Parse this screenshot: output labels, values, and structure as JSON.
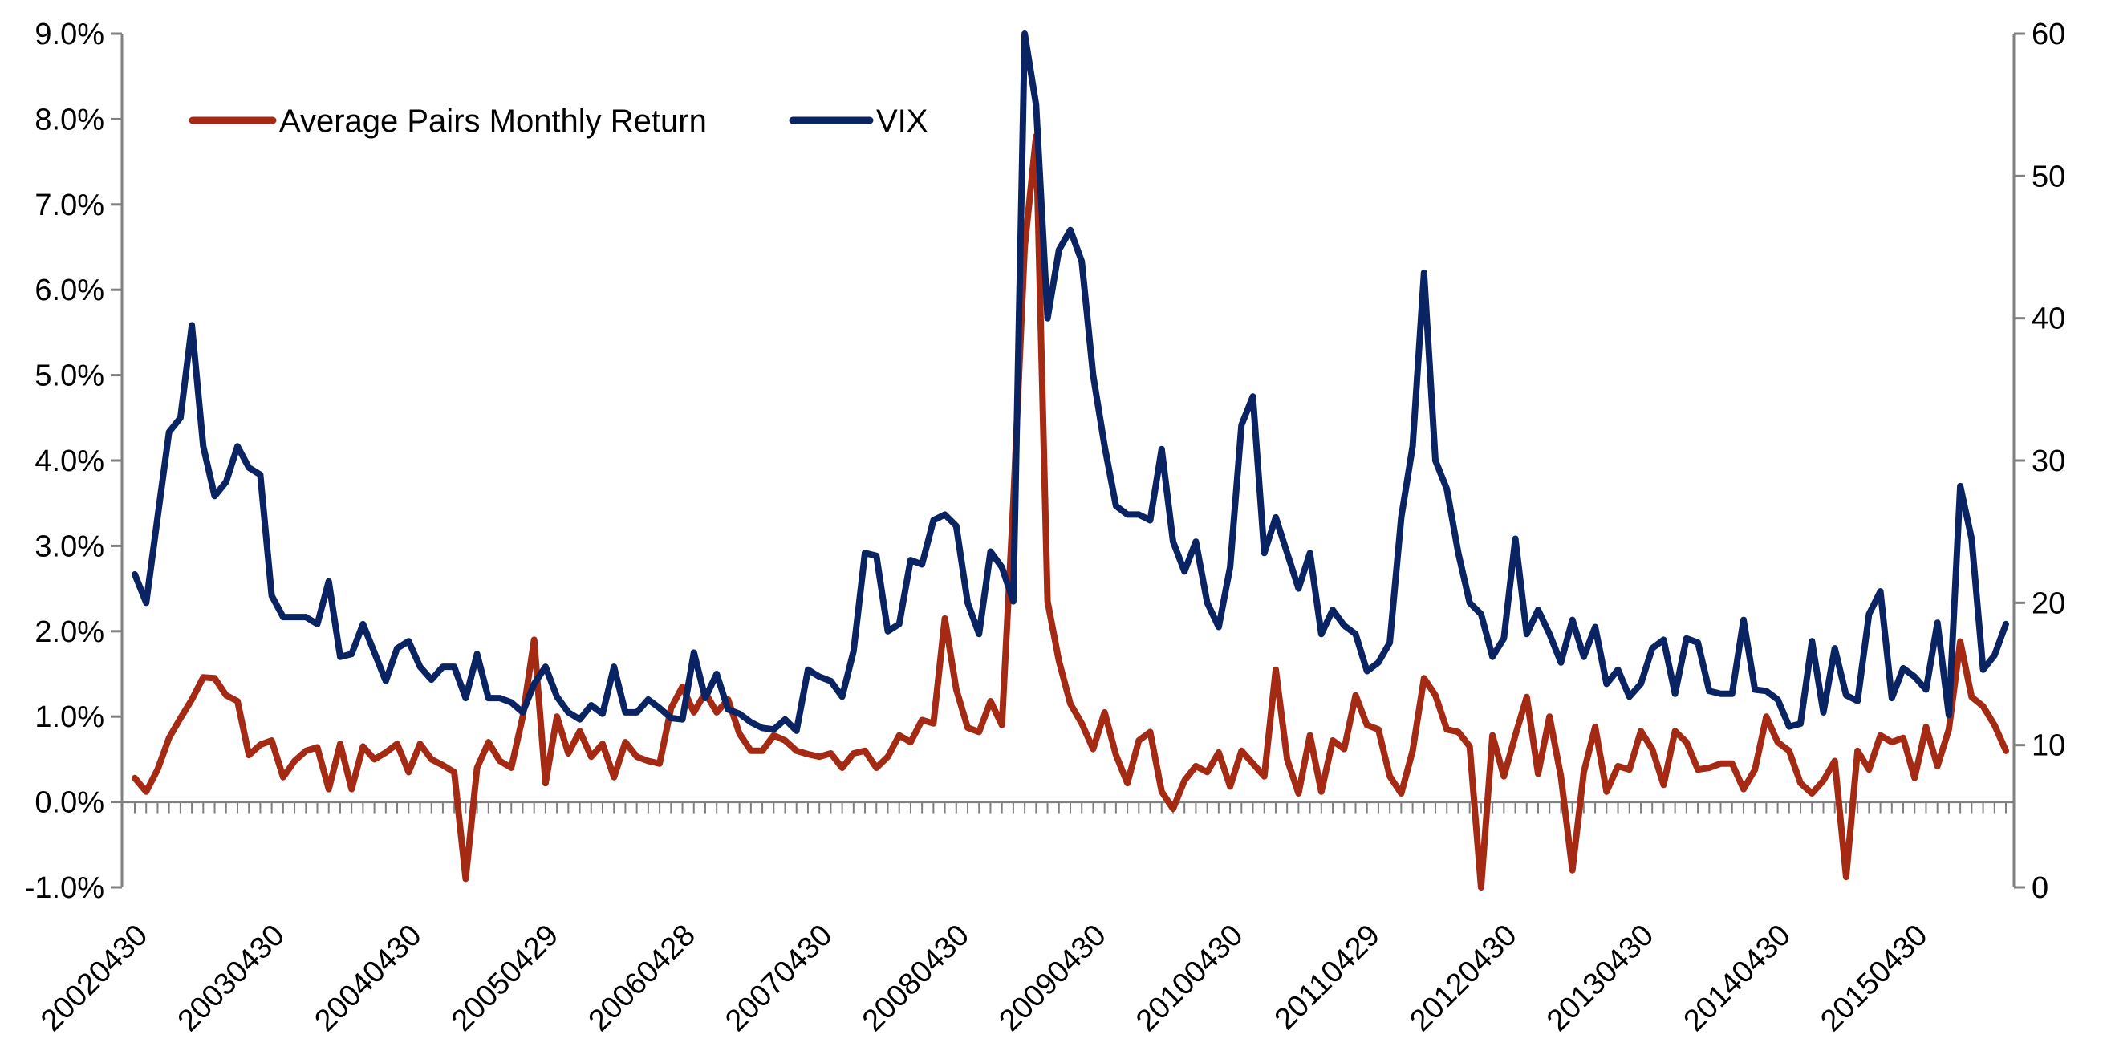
{
  "chart_data": {
    "type": "line",
    "title": "",
    "xlabel": "",
    "ylabel": "",
    "y_left": {
      "range": [
        -1.0,
        9.0
      ],
      "step": 1.0,
      "tick_labels": [
        "-1.0%",
        "0.0%",
        "1.0%",
        "2.0%",
        "3.0%",
        "4.0%",
        "5.0%",
        "6.0%",
        "7.0%",
        "8.0%",
        "9.0%"
      ]
    },
    "y_right": {
      "range": [
        0,
        60
      ],
      "step": 10,
      "tick_labels": [
        "0",
        "10",
        "20",
        "30",
        "40",
        "50",
        "60"
      ]
    },
    "x_tick_labels": [
      "20020430",
      "20030430",
      "20040430",
      "20050429",
      "20060428",
      "20070430",
      "20080430",
      "20090430",
      "20100430",
      "20110429",
      "20120430",
      "20130430",
      "20140430",
      "20150430"
    ],
    "legend": {
      "placement": "top-left",
      "entries": [
        "Average Pairs Monthly Return",
        "VIX"
      ]
    },
    "grid": false,
    "series": [
      {
        "name": "Average Pairs Monthly Return",
        "axis": "left",
        "unit": "percent",
        "color": "#A52A14",
        "values": [
          0.28,
          0.12,
          0.38,
          0.75,
          0.98,
          1.2,
          1.46,
          1.45,
          1.25,
          1.18,
          0.55,
          0.67,
          0.72,
          0.29,
          0.48,
          0.6,
          0.64,
          0.15,
          0.68,
          0.15,
          0.65,
          0.5,
          0.58,
          0.68,
          0.35,
          0.68,
          0.5,
          0.43,
          0.35,
          -0.9,
          0.4,
          0.7,
          0.48,
          0.4,
          1.0,
          1.9,
          0.22,
          1.0,
          0.57,
          0.83,
          0.53,
          0.68,
          0.29,
          0.7,
          0.53,
          0.48,
          0.45,
          1.1,
          1.35,
          1.05,
          1.28,
          1.05,
          1.2,
          0.8,
          0.6,
          0.6,
          0.78,
          0.72,
          0.6,
          0.56,
          0.53,
          0.57,
          0.4,
          0.57,
          0.6,
          0.4,
          0.53,
          0.78,
          0.7,
          0.96,
          0.92,
          2.15,
          1.32,
          0.87,
          0.82,
          1.18,
          0.9,
          3.5,
          6.5,
          7.8,
          2.35,
          1.65,
          1.15,
          0.92,
          0.62,
          1.05,
          0.55,
          0.22,
          0.72,
          0.82,
          0.12,
          -0.08,
          0.25,
          0.42,
          0.35,
          0.58,
          0.18,
          0.6,
          0.45,
          0.3,
          1.55,
          0.5,
          0.1,
          0.78,
          0.12,
          0.72,
          0.62,
          1.25,
          0.9,
          0.85,
          0.3,
          0.1,
          0.6,
          1.45,
          1.25,
          0.85,
          0.82,
          0.65,
          -1.0,
          0.78,
          0.3,
          0.78,
          1.23,
          0.33,
          1.0,
          0.3,
          -0.8,
          0.35,
          0.88,
          0.12,
          0.42,
          0.38,
          0.83,
          0.62,
          0.2,
          0.83,
          0.7,
          0.38,
          0.4,
          0.45,
          0.45,
          0.15,
          0.38,
          1.0,
          0.7,
          0.6,
          0.22,
          0.1,
          0.25,
          0.48,
          -0.88,
          0.6,
          0.38,
          0.78,
          0.7,
          0.75,
          0.28,
          0.88,
          0.42,
          0.85,
          1.88,
          1.23,
          1.12,
          0.9,
          0.6
        ]
      },
      {
        "name": "VIX",
        "axis": "right",
        "unit": "index",
        "color": "#0A2463",
        "values": [
          22,
          20,
          26,
          32,
          33,
          39.5,
          31,
          27.5,
          28.5,
          31,
          29.5,
          29,
          20.5,
          19,
          19,
          19,
          18.5,
          21.5,
          16.2,
          16.4,
          18.5,
          16.5,
          14.5,
          16.8,
          17.3,
          15.5,
          14.6,
          15.5,
          15.5,
          13.3,
          16.4,
          13.3,
          13.3,
          13,
          12.3,
          14.3,
          15.5,
          13.4,
          12.3,
          11.8,
          12.8,
          12.2,
          15.5,
          12.3,
          12.3,
          13.2,
          12.6,
          11.9,
          11.8,
          16.5,
          13.3,
          15,
          12.5,
          12.2,
          11.6,
          11.2,
          11.1,
          11.8,
          11,
          15.3,
          14.8,
          14.5,
          13.4,
          16.6,
          23.5,
          23.3,
          18,
          18.5,
          23,
          22.7,
          25.8,
          26.2,
          25.4,
          20,
          17.8,
          23.6,
          22.5,
          20.1,
          60,
          55,
          40,
          44.8,
          46.2,
          44,
          36,
          31,
          26.8,
          26.2,
          26.2,
          25.8,
          30.8,
          24.3,
          22.2,
          24.3,
          20,
          18.3,
          22.5,
          32.5,
          34.5,
          23.5,
          26,
          23.5,
          21,
          23.5,
          17.8,
          19.5,
          18.4,
          17.8,
          15.2,
          15.8,
          17.2,
          26,
          31,
          43.2,
          30,
          28,
          23.5,
          20,
          19.2,
          16.2,
          17.5,
          24.5,
          17.8,
          19.5,
          17.8,
          15.8,
          18.8,
          16.2,
          18.3,
          14.3,
          15.3,
          13.4,
          14.3,
          16.8,
          17.4,
          13.6,
          17.5,
          17.2,
          13.8,
          13.6,
          13.6,
          18.8,
          13.9,
          13.8,
          13.2,
          11.3,
          11.5,
          17.3,
          12.3,
          16.8,
          13.5,
          13.1,
          19.2,
          20.8,
          13.3,
          15.4,
          14.8,
          13.9,
          18.6,
          12.1,
          28.2,
          24.5,
          15.3,
          16.3,
          18.5
        ]
      }
    ]
  }
}
